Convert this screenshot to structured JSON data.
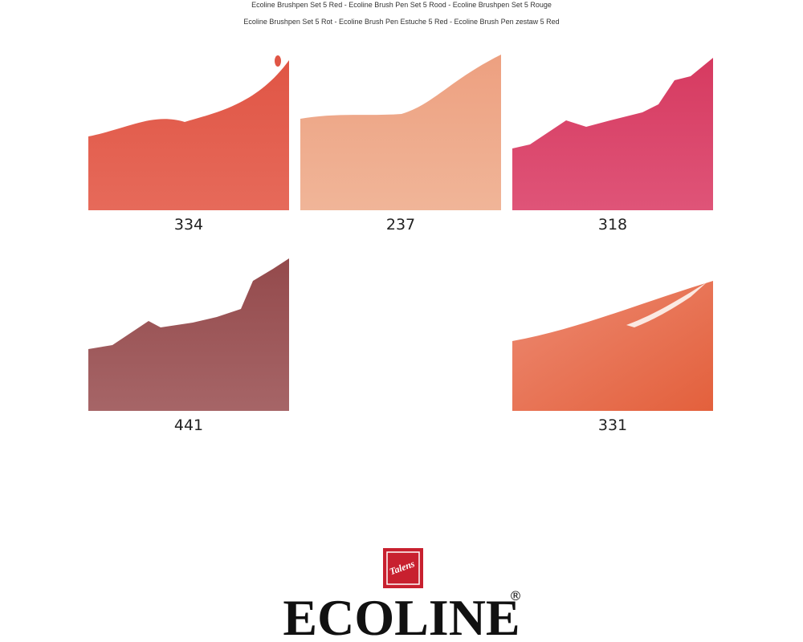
{
  "header": {
    "line1": "Ecoline Brushpen Set 5 Red  - Ecoline Brush Pen Set 5 Rood - Ecoline Brushpen Set 5 Rouge",
    "line2": "Ecoline Brushpen Set 5 Rot - Ecoline Brush Pen Estuche 5 Red - Ecoline Brush Pen zestaw 5 Red"
  },
  "swatches": [
    {
      "label": "334"
    },
    {
      "label": "237"
    },
    {
      "label": "318"
    },
    {
      "label": "441"
    },
    {
      "label": "331"
    }
  ],
  "logo": {
    "badge": "Talens",
    "brand": "ECOLINE",
    "mark": "®"
  }
}
